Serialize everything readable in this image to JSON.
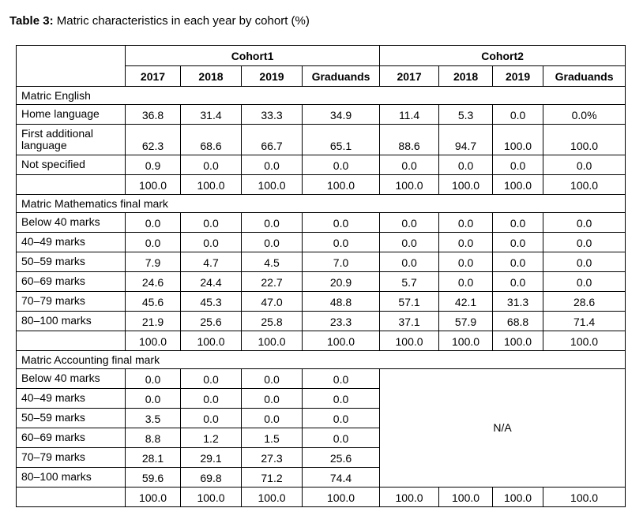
{
  "caption": {
    "label": "Table 3:",
    "text": " Matric characteristics in each year by cohort (%)"
  },
  "cohorts": [
    "Cohort1",
    "Cohort2"
  ],
  "columns": [
    "2017",
    "2018",
    "2019",
    "Graduands",
    "2017",
    "2018",
    "2019",
    "Graduands"
  ],
  "sections": [
    {
      "title": "Matric English",
      "rows": [
        {
          "label": "Home language",
          "values": [
            "36.8",
            "31.4",
            "33.3",
            "34.9",
            "11.4",
            "5.3",
            "0.0",
            "0.0%"
          ]
        },
        {
          "label": "First additional language",
          "values": [
            "62.3",
            "68.6",
            "66.7",
            "65.1",
            "88.6",
            "94.7",
            "100.0",
            "100.0"
          ]
        },
        {
          "label": "Not specified",
          "values": [
            "0.9",
            "0.0",
            "0.0",
            "0.0",
            "0.0",
            "0.0",
            "0.0",
            "0.0"
          ]
        },
        {
          "label": "",
          "values": [
            "100.0",
            "100.0",
            "100.0",
            "100.0",
            "100.0",
            "100.0",
            "100.0",
            "100.0"
          ]
        }
      ]
    },
    {
      "title": "Matric Mathematics final mark",
      "rows": [
        {
          "label": "Below 40 marks",
          "values": [
            "0.0",
            "0.0",
            "0.0",
            "0.0",
            "0.0",
            "0.0",
            "0.0",
            "0.0"
          ]
        },
        {
          "label": "40–49 marks",
          "values": [
            "0.0",
            "0.0",
            "0.0",
            "0.0",
            "0.0",
            "0.0",
            "0.0",
            "0.0"
          ]
        },
        {
          "label": "50–59 marks",
          "values": [
            "7.9",
            "4.7",
            "4.5",
            "7.0",
            "0.0",
            "0.0",
            "0.0",
            "0.0"
          ]
        },
        {
          "label": "60–69 marks",
          "values": [
            "24.6",
            "24.4",
            "22.7",
            "20.9",
            "5.7",
            "0.0",
            "0.0",
            "0.0"
          ]
        },
        {
          "label": "70–79 marks",
          "values": [
            "45.6",
            "45.3",
            "47.0",
            "48.8",
            "57.1",
            "42.1",
            "31.3",
            "28.6"
          ]
        },
        {
          "label": "80–100 marks",
          "values": [
            "21.9",
            "25.6",
            "25.8",
            "23.3",
            "37.1",
            "57.9",
            "68.8",
            "71.4"
          ]
        },
        {
          "label": "",
          "values": [
            "100.0",
            "100.0",
            "100.0",
            "100.0",
            "100.0",
            "100.0",
            "100.0",
            "100.0"
          ]
        }
      ]
    },
    {
      "title": "Matric Accounting final mark",
      "na": "N/A",
      "rows": [
        {
          "label": "Below 40 marks",
          "values": [
            "0.0",
            "0.0",
            "0.0",
            "0.0"
          ]
        },
        {
          "label": "40–49 marks",
          "values": [
            "0.0",
            "0.0",
            "0.0",
            "0.0"
          ]
        },
        {
          "label": "50–59 marks",
          "values": [
            "3.5",
            "0.0",
            "0.0",
            "0.0"
          ]
        },
        {
          "label": "60–69 marks",
          "values": [
            "8.8",
            "1.2",
            "1.5",
            "0.0"
          ]
        },
        {
          "label": "70–79 marks",
          "values": [
            "28.1",
            "29.1",
            "27.3",
            "25.6"
          ]
        },
        {
          "label": "80–100 marks",
          "values": [
            "59.6",
            "69.8",
            "71.2",
            "74.4"
          ]
        },
        {
          "label": "",
          "values": [
            "100.0",
            "100.0",
            "100.0",
            "100.0",
            "100.0",
            "100.0",
            "100.0",
            "100.0"
          ]
        }
      ]
    }
  ]
}
